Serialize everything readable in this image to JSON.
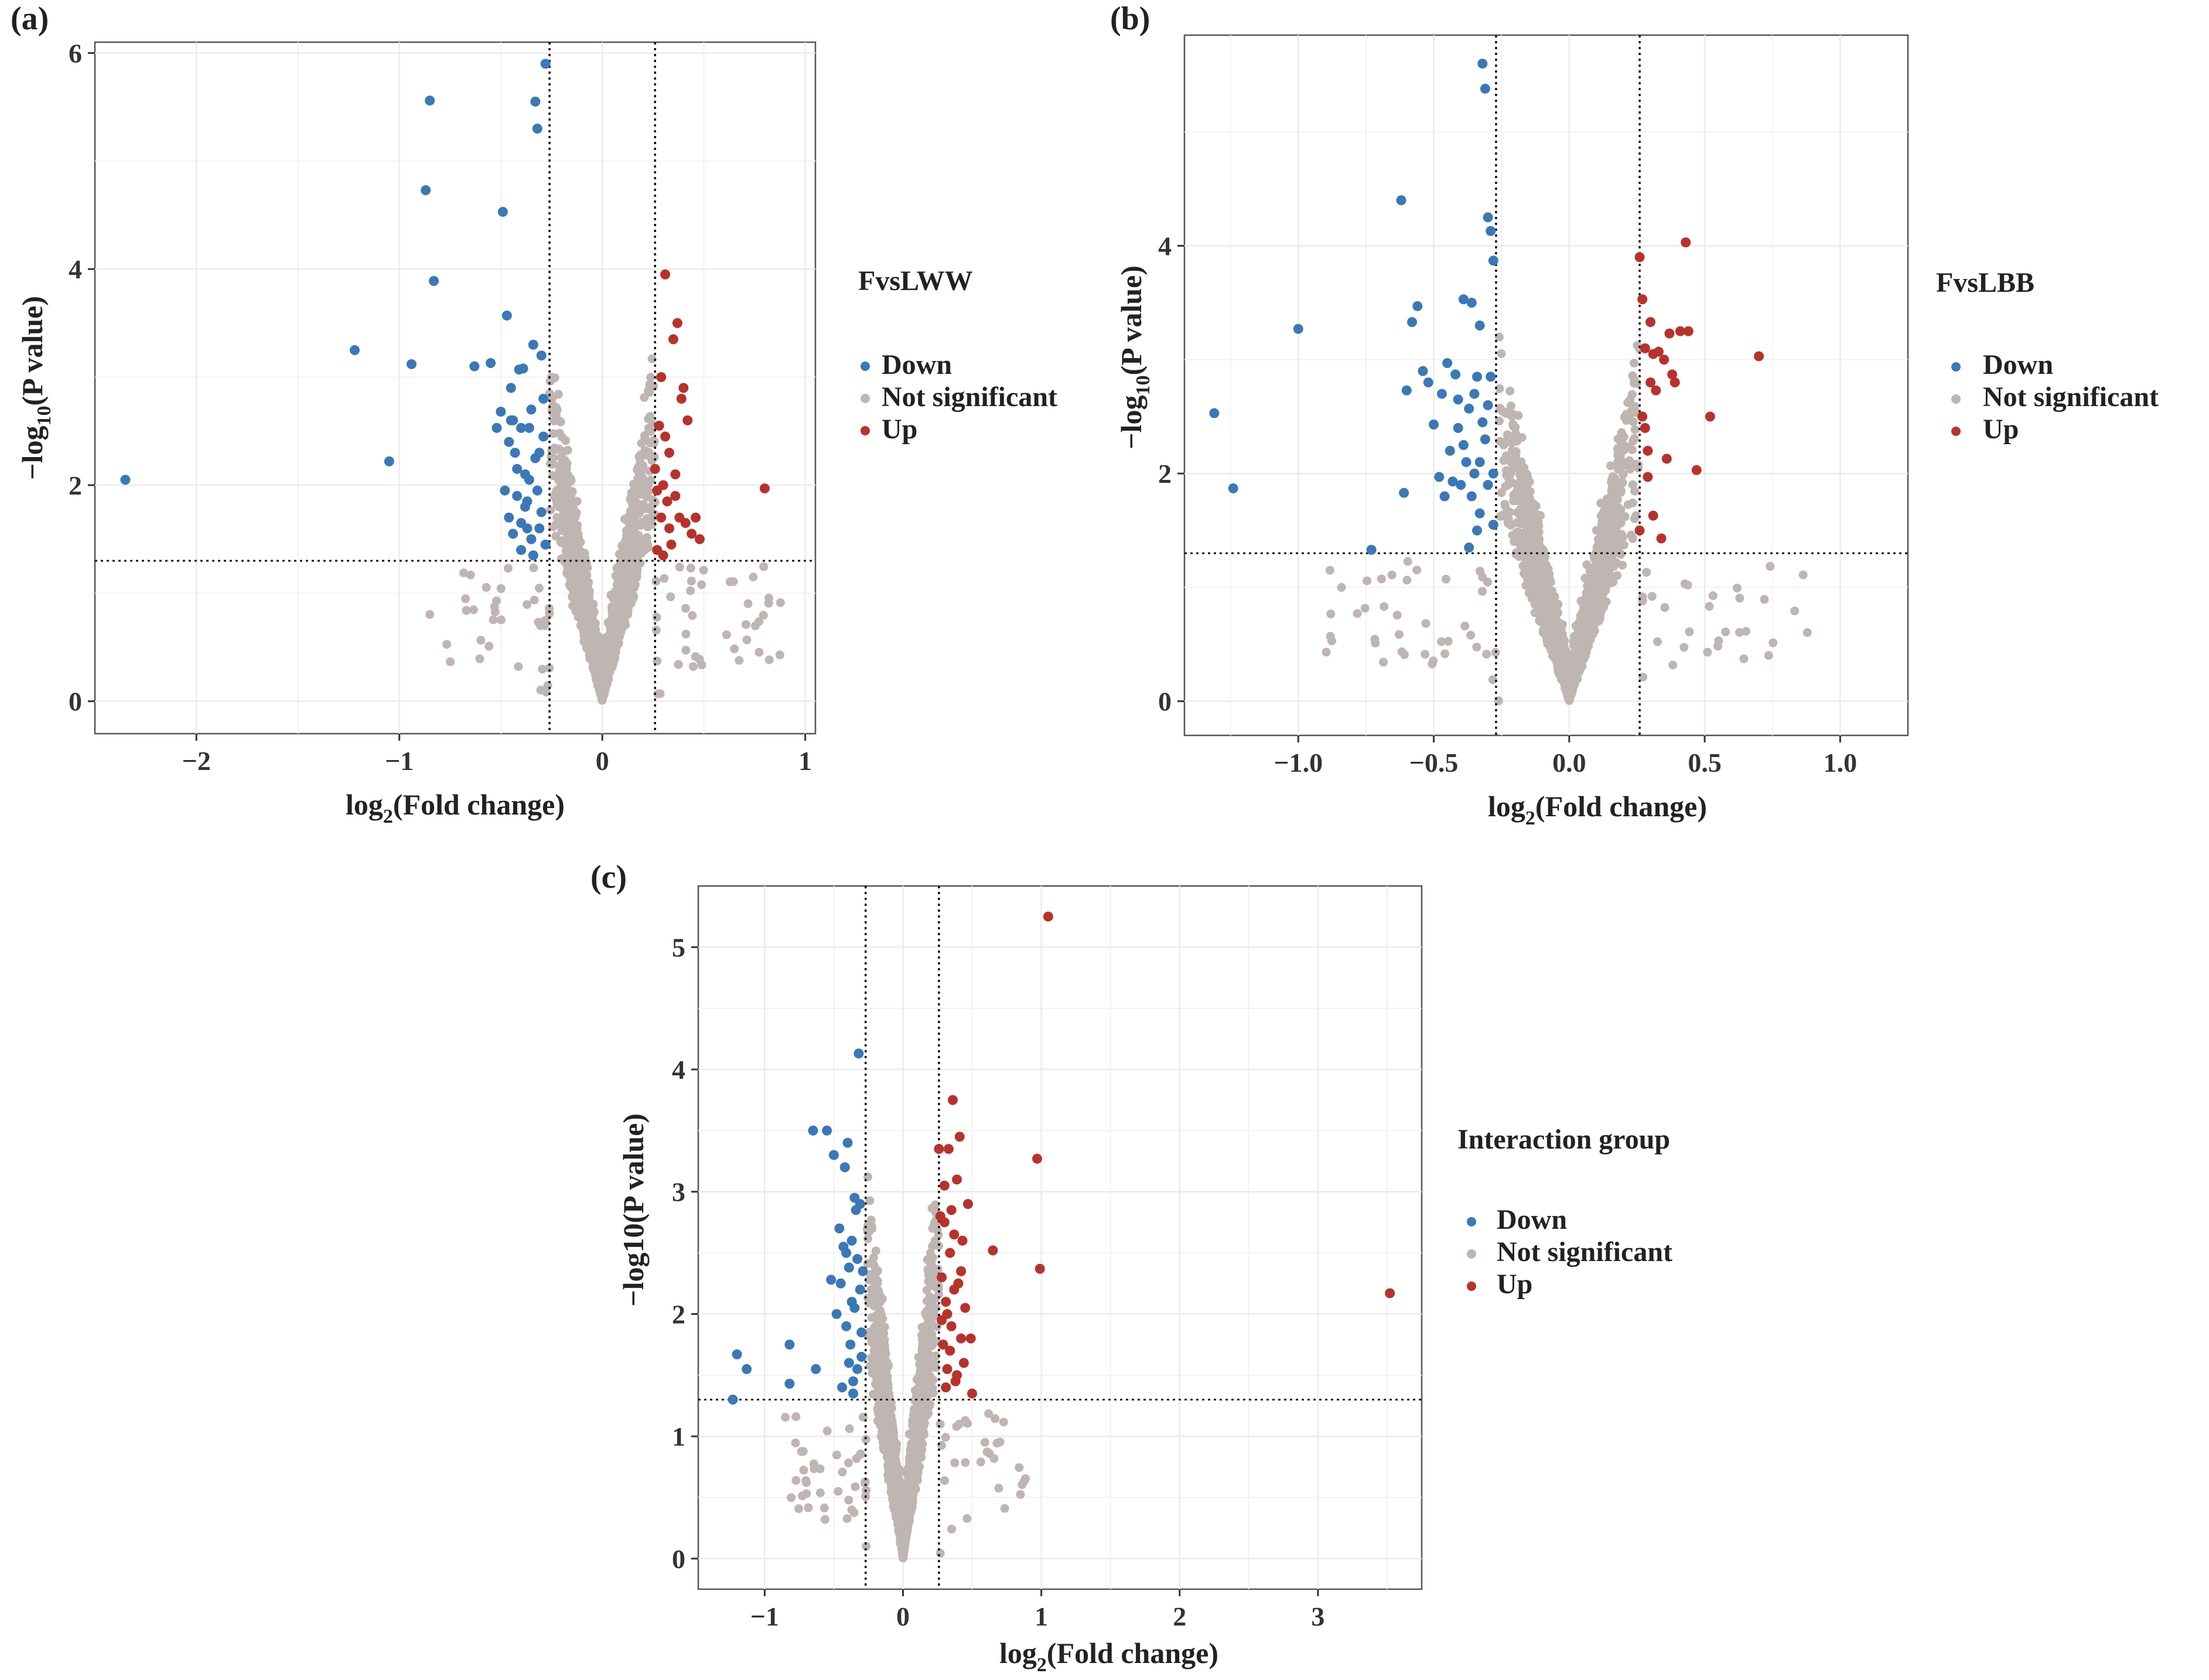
{
  "colors": {
    "down": "#3A78B8",
    "not_significant": "#BFB5B3",
    "up": "#B8322B",
    "grid": "#EBEBEB",
    "axis": "#333333",
    "text": "#222222"
  },
  "legend_labels": [
    "Down",
    "Not significant",
    "Up"
  ],
  "chart_data": [
    {
      "panel_label": "(a)",
      "type": "scatter",
      "legend_title": "FvsLWW",
      "xlabel": "log2(Fold change)",
      "xlabel_main": "log",
      "xlabel_sub": "2",
      "xlabel_rest": "(Fold change)",
      "ylabel": "-log10(P value)",
      "ylabel_main": "−log",
      "ylabel_sub": "10",
      "ylabel_rest": "(P value)",
      "xlim": [
        -2.5,
        1.05
      ],
      "ylim": [
        -0.3,
        6.1
      ],
      "xticks": [
        -2,
        -1,
        0,
        1
      ],
      "xtick_labels": [
        "−2",
        "−1",
        "0",
        "1"
      ],
      "yticks": [
        0,
        2,
        4,
        6
      ],
      "ytick_labels": [
        "0",
        "2",
        "4",
        "6"
      ],
      "vlines": [
        -0.26,
        0.26
      ],
      "hline": 1.3,
      "grid": true,
      "legend": "right",
      "series": [
        {
          "name": "Down",
          "points": [
            [
              -2.35,
              2.05
            ],
            [
              -1.22,
              3.25
            ],
            [
              -1.05,
              2.22
            ],
            [
              -0.94,
              3.12
            ],
            [
              -0.87,
              4.73
            ],
            [
              -0.85,
              5.56
            ],
            [
              -0.83,
              3.89
            ],
            [
              -0.63,
              3.1
            ],
            [
              -0.55,
              3.13
            ],
            [
              -0.52,
              2.53
            ],
            [
              -0.5,
              2.68
            ],
            [
              -0.49,
              4.53
            ],
            [
              -0.47,
              3.57
            ],
            [
              -0.46,
              2.4
            ],
            [
              -0.45,
              2.9
            ],
            [
              -0.44,
              2.6
            ],
            [
              -0.43,
              2.3
            ],
            [
              -0.42,
              1.9
            ],
            [
              -0.41,
              3.07
            ],
            [
              -0.4,
              2.53
            ],
            [
              -0.39,
              3.08
            ],
            [
              -0.38,
              2.1
            ],
            [
              -0.37,
              1.6
            ],
            [
              -0.36,
              2.53
            ],
            [
              -0.35,
              1.5
            ],
            [
              -0.34,
              3.3
            ],
            [
              -0.33,
              5.55
            ],
            [
              -0.32,
              5.3
            ],
            [
              -0.31,
              2.3
            ],
            [
              -0.3,
              3.2
            ],
            [
              -0.29,
              2.8
            ],
            [
              -0.28,
              5.9
            ],
            [
              -0.28,
              1.45
            ],
            [
              -0.3,
              1.75
            ],
            [
              -0.32,
              1.95
            ],
            [
              -0.34,
              1.35
            ],
            [
              -0.36,
              2.05
            ],
            [
              -0.38,
              1.8
            ],
            [
              -0.4,
              1.65
            ],
            [
              -0.42,
              2.15
            ],
            [
              -0.44,
              1.55
            ],
            [
              -0.46,
              1.7
            ],
            [
              -0.48,
              1.95
            ],
            [
              -0.35,
              2.7
            ],
            [
              -0.33,
              2.25
            ],
            [
              -0.31,
              1.6
            ],
            [
              -0.29,
              2.45
            ],
            [
              -0.37,
              1.85
            ],
            [
              -0.45,
              2.6
            ],
            [
              -0.4,
              1.4
            ]
          ]
        },
        {
          "name": "Up",
          "points": [
            [
              0.26,
              2.15
            ],
            [
              0.27,
              1.95
            ],
            [
              0.28,
              2.55
            ],
            [
              0.29,
              1.7
            ],
            [
              0.3,
              2.0
            ],
            [
              0.31,
              3.95
            ],
            [
              0.32,
              1.85
            ],
            [
              0.33,
              2.3
            ],
            [
              0.34,
              1.45
            ],
            [
              0.35,
              3.35
            ],
            [
              0.36,
              2.1
            ],
            [
              0.37,
              3.5
            ],
            [
              0.38,
              1.7
            ],
            [
              0.39,
              2.8
            ],
            [
              0.4,
              2.9
            ],
            [
              0.41,
              1.65
            ],
            [
              0.42,
              2.6
            ],
            [
              0.44,
              1.55
            ],
            [
              0.46,
              1.7
            ],
            [
              0.48,
              1.5
            ],
            [
              0.8,
              1.97
            ],
            [
              0.29,
              3.0
            ],
            [
              0.31,
              2.45
            ],
            [
              0.33,
              1.6
            ],
            [
              0.36,
              1.9
            ],
            [
              0.27,
              1.4
            ],
            [
              0.3,
              1.35
            ]
          ]
        }
      ]
    },
    {
      "panel_label": "(b)",
      "type": "scatter",
      "legend_title": "FvsLBB",
      "xlabel": "log2(Fold change)",
      "xlabel_main": "log",
      "xlabel_sub": "2",
      "xlabel_rest": "(Fold change)",
      "ylabel": "-log10(P value)",
      "ylabel_main": "−log",
      "ylabel_sub": "10",
      "ylabel_rest": "(P value)",
      "xlim": [
        -1.42,
        1.25
      ],
      "ylim": [
        -0.3,
        5.85
      ],
      "xticks": [
        -1.0,
        -0.5,
        0.0,
        0.5,
        1.0
      ],
      "xtick_labels": [
        "−1.0",
        "−0.5",
        "0.0",
        "0.5",
        "1.0"
      ],
      "yticks": [
        0,
        2,
        4
      ],
      "ytick_labels": [
        "0",
        "2",
        "4"
      ],
      "vlines": [
        -0.27,
        0.26
      ],
      "hline": 1.3,
      "grid": true,
      "legend": "right",
      "series": [
        {
          "name": "Down",
          "points": [
            [
              -1.31,
              2.53
            ],
            [
              -1.24,
              1.87
            ],
            [
              -1.0,
              3.27
            ],
            [
              -0.73,
              1.33
            ],
            [
              -0.62,
              4.4
            ],
            [
              -0.61,
              1.83
            ],
            [
              -0.6,
              2.73
            ],
            [
              -0.58,
              3.33
            ],
            [
              -0.56,
              3.47
            ],
            [
              -0.54,
              2.9
            ],
            [
              -0.52,
              2.8
            ],
            [
              -0.5,
              2.43
            ],
            [
              -0.48,
              1.97
            ],
            [
              -0.47,
              2.7
            ],
            [
              -0.46,
              1.8
            ],
            [
              -0.45,
              2.97
            ],
            [
              -0.44,
              2.2
            ],
            [
              -0.43,
              1.93
            ],
            [
              -0.42,
              2.87
            ],
            [
              -0.41,
              2.4
            ],
            [
              -0.4,
              1.9
            ],
            [
              -0.39,
              3.53
            ],
            [
              -0.38,
              2.1
            ],
            [
              -0.37,
              2.57
            ],
            [
              -0.36,
              3.5
            ],
            [
              -0.35,
              2.7
            ],
            [
              -0.34,
              1.5
            ],
            [
              -0.33,
              3.3
            ],
            [
              -0.32,
              5.6
            ],
            [
              -0.31,
              5.38
            ],
            [
              -0.3,
              4.25
            ],
            [
              -0.29,
              4.13
            ],
            [
              -0.28,
              3.87
            ],
            [
              -0.29,
              2.85
            ],
            [
              -0.31,
              2.3
            ],
            [
              -0.33,
              1.65
            ],
            [
              -0.35,
              2.0
            ],
            [
              -0.37,
              1.35
            ],
            [
              -0.39,
              2.25
            ],
            [
              -0.41,
              2.65
            ],
            [
              -0.3,
              1.9
            ],
            [
              -0.32,
              2.45
            ],
            [
              -0.34,
              2.85
            ],
            [
              -0.36,
              1.8
            ],
            [
              -0.28,
              2.0
            ],
            [
              -0.28,
              1.55
            ],
            [
              -0.3,
              2.6
            ],
            [
              -0.33,
              2.1
            ]
          ]
        },
        {
          "name": "Up",
          "points": [
            [
              0.26,
              3.9
            ],
            [
              0.27,
              3.53
            ],
            [
              0.28,
              3.1
            ],
            [
              0.28,
              2.4
            ],
            [
              0.29,
              1.97
            ],
            [
              0.3,
              2.8
            ],
            [
              0.3,
              3.33
            ],
            [
              0.31,
              1.63
            ],
            [
              0.32,
              2.73
            ],
            [
              0.33,
              3.07
            ],
            [
              0.34,
              1.43
            ],
            [
              0.35,
              3.0
            ],
            [
              0.36,
              2.13
            ],
            [
              0.37,
              3.23
            ],
            [
              0.38,
              2.87
            ],
            [
              0.39,
              2.8
            ],
            [
              0.41,
              3.25
            ],
            [
              0.43,
              4.03
            ],
            [
              0.44,
              3.25
            ],
            [
              0.47,
              2.03
            ],
            [
              0.52,
              2.5
            ],
            [
              0.7,
              3.03
            ],
            [
              0.27,
              2.5
            ],
            [
              0.29,
              2.2
            ],
            [
              0.31,
              3.05
            ],
            [
              0.26,
              1.5
            ]
          ]
        }
      ]
    },
    {
      "panel_label": "(c)",
      "type": "scatter",
      "legend_title": "Interaction group",
      "xlabel": "log2(Fold change)",
      "xlabel_main": "log",
      "xlabel_sub": "2",
      "xlabel_rest": "(Fold change)",
      "ylabel": "-log10(P value)",
      "ylabel_main": "−log10(P value)",
      "ylabel_sub": "",
      "ylabel_rest": "",
      "xlim": [
        -1.48,
        3.75
      ],
      "ylim": [
        -0.25,
        5.5
      ],
      "xticks": [
        -1,
        0,
        1,
        2,
        3
      ],
      "xtick_labels": [
        "−1",
        "0",
        "1",
        "2",
        "3"
      ],
      "yticks": [
        0,
        1,
        2,
        3,
        4,
        5
      ],
      "ytick_labels": [
        "0",
        "1",
        "2",
        "3",
        "4",
        "5"
      ],
      "vlines": [
        -0.27,
        0.26
      ],
      "hline": 1.3,
      "grid": true,
      "legend": "right",
      "series": [
        {
          "name": "Down",
          "points": [
            [
              -1.23,
              1.3
            ],
            [
              -1.2,
              1.67
            ],
            [
              -1.13,
              1.55
            ],
            [
              -0.82,
              1.75
            ],
            [
              -0.82,
              1.43
            ],
            [
              -0.65,
              3.5
            ],
            [
              -0.63,
              1.55
            ],
            [
              -0.55,
              3.5
            ],
            [
              -0.52,
              2.28
            ],
            [
              -0.5,
              3.3
            ],
            [
              -0.48,
              2.0
            ],
            [
              -0.46,
              2.7
            ],
            [
              -0.45,
              2.25
            ],
            [
              -0.44,
              1.4
            ],
            [
              -0.43,
              2.55
            ],
            [
              -0.42,
              3.2
            ],
            [
              -0.41,
              1.9
            ],
            [
              -0.4,
              3.4
            ],
            [
              -0.39,
              2.38
            ],
            [
              -0.38,
              1.75
            ],
            [
              -0.37,
              2.6
            ],
            [
              -0.36,
              1.35
            ],
            [
              -0.35,
              2.05
            ],
            [
              -0.34,
              2.85
            ],
            [
              -0.33,
              1.55
            ],
            [
              -0.32,
              4.13
            ],
            [
              -0.31,
              2.2
            ],
            [
              -0.3,
              1.85
            ],
            [
              -0.33,
              2.45
            ],
            [
              -0.35,
              2.95
            ],
            [
              -0.37,
              2.1
            ],
            [
              -0.39,
              1.6
            ],
            [
              -0.41,
              2.5
            ],
            [
              -0.3,
              1.65
            ],
            [
              -0.29,
              2.35
            ],
            [
              -0.31,
              2.9
            ],
            [
              -0.36,
              1.45
            ]
          ]
        },
        {
          "name": "Up",
          "points": [
            [
              0.26,
              3.35
            ],
            [
              0.27,
              2.8
            ],
            [
              0.28,
              2.3
            ],
            [
              0.29,
              1.75
            ],
            [
              0.3,
              3.05
            ],
            [
              0.31,
              2.1
            ],
            [
              0.32,
              1.55
            ],
            [
              0.33,
              3.35
            ],
            [
              0.34,
              2.5
            ],
            [
              0.35,
              1.9
            ],
            [
              0.36,
              3.75
            ],
            [
              0.37,
              2.65
            ],
            [
              0.38,
              1.45
            ],
            [
              0.39,
              3.1
            ],
            [
              0.4,
              2.25
            ],
            [
              0.41,
              3.45
            ],
            [
              0.42,
              1.8
            ],
            [
              0.43,
              2.6
            ],
            [
              0.44,
              1.6
            ],
            [
              0.45,
              2.05
            ],
            [
              0.47,
              2.9
            ],
            [
              0.49,
              1.8
            ],
            [
              0.5,
              1.35
            ],
            [
              0.65,
              2.52
            ],
            [
              0.97,
              3.27
            ],
            [
              0.99,
              2.37
            ],
            [
              1.05,
              5.25
            ],
            [
              3.52,
              2.17
            ],
            [
              0.3,
              2.75
            ],
            [
              0.32,
              2.0
            ],
            [
              0.34,
              1.7
            ],
            [
              0.37,
              2.2
            ],
            [
              0.39,
              1.5
            ],
            [
              0.28,
              1.95
            ],
            [
              0.31,
              1.4
            ],
            [
              0.35,
              2.85
            ],
            [
              0.42,
              2.35
            ]
          ]
        }
      ]
    }
  ]
}
